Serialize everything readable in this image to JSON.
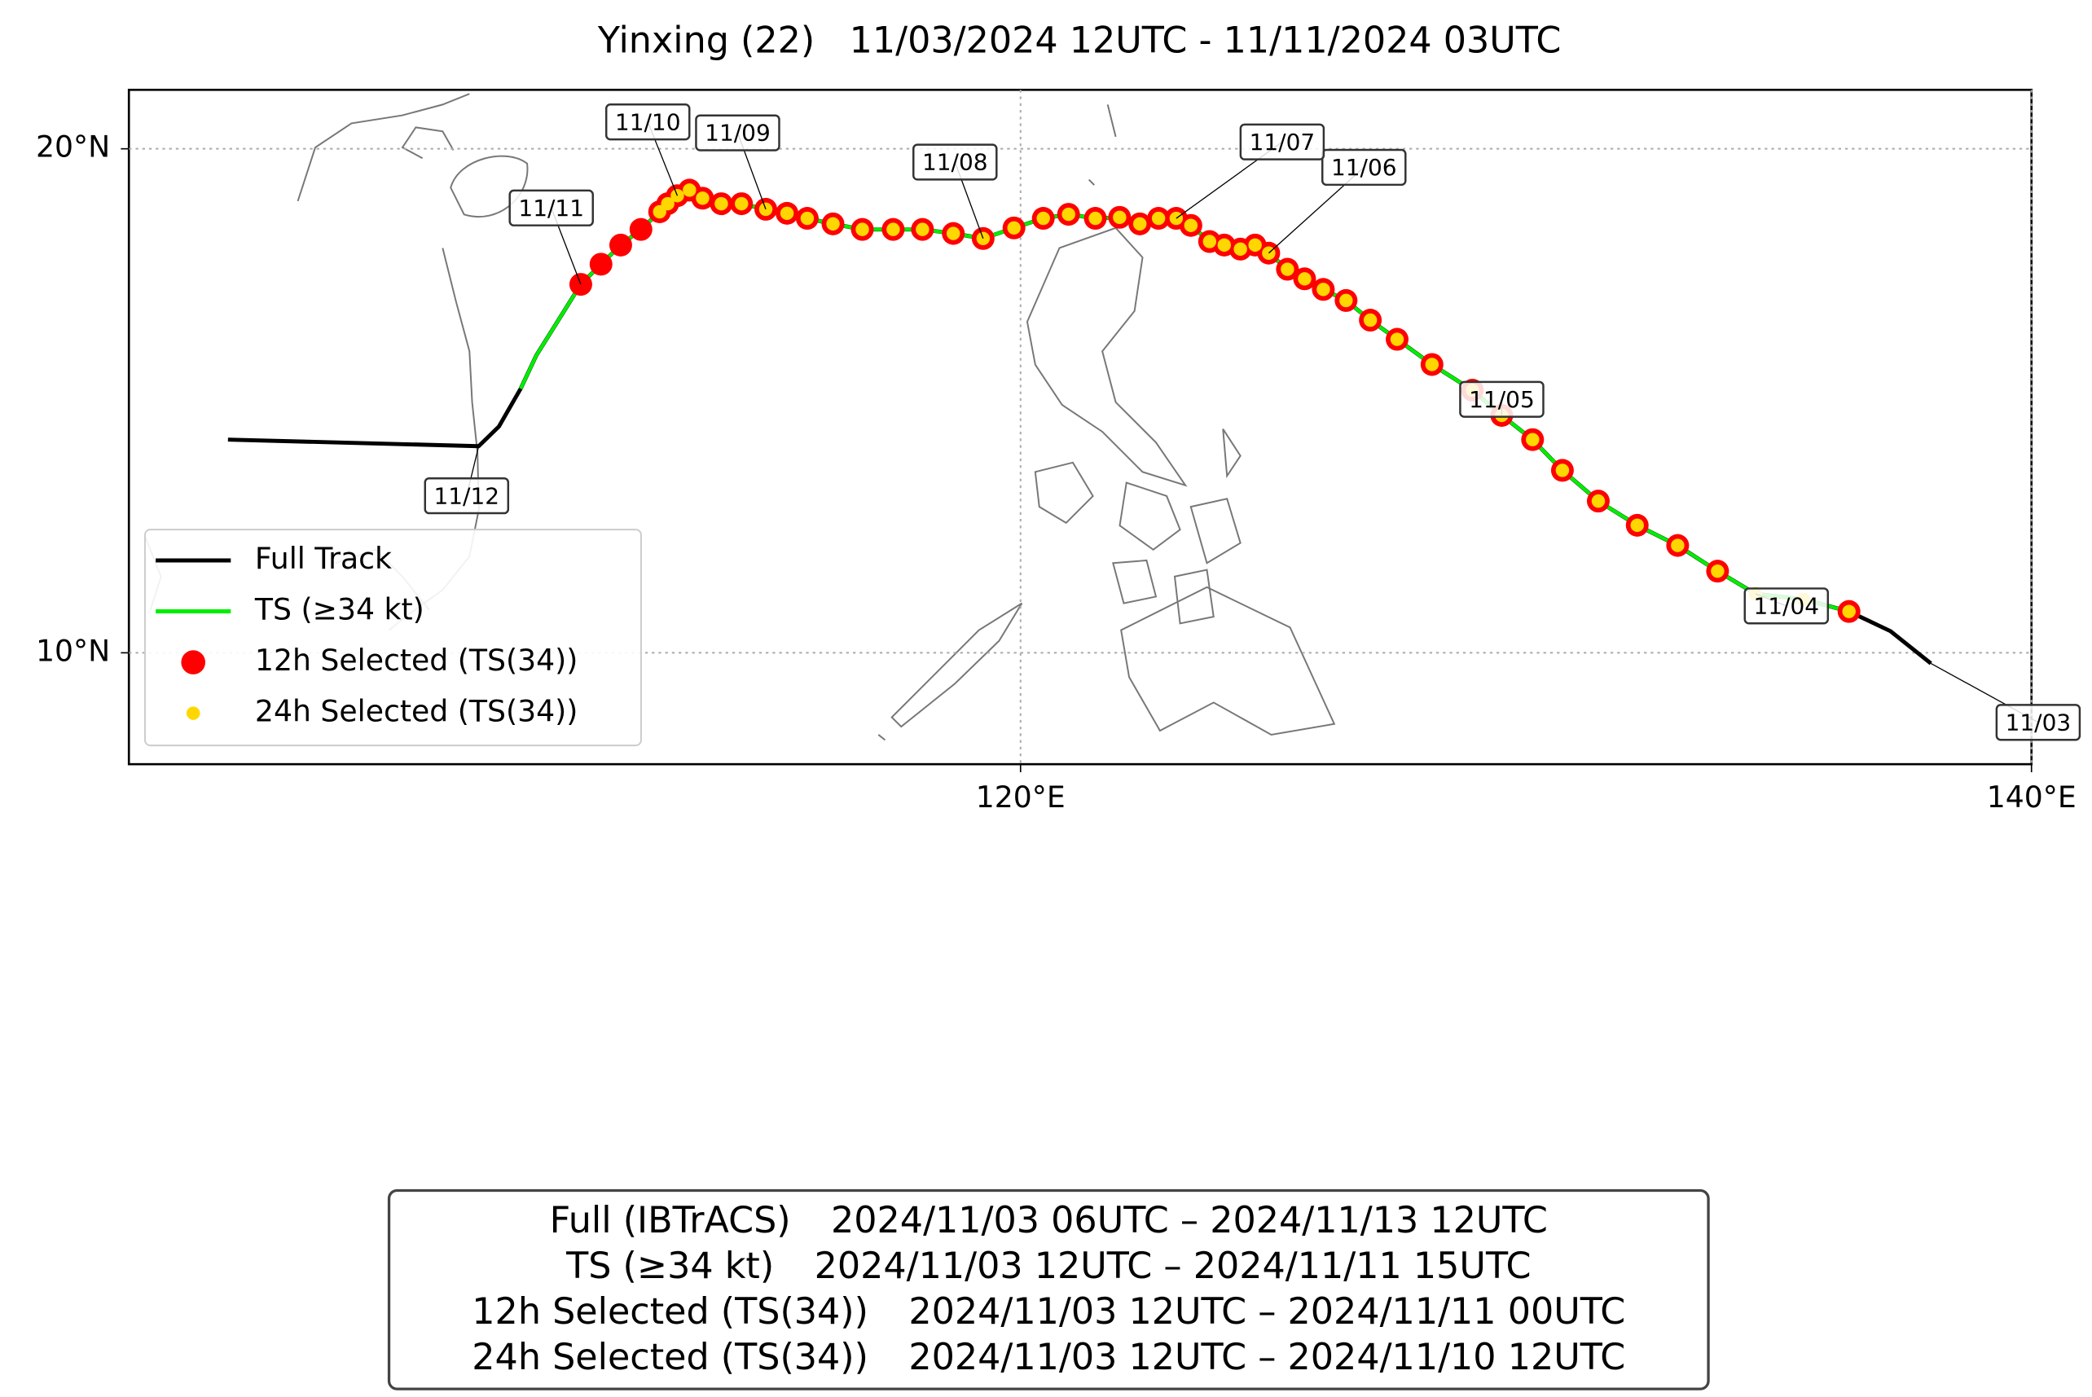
{
  "chart_data": {
    "type": "track",
    "title": "Yinxing (22)   11/03/2024 12UTC - 11/11/2024 03UTC",
    "xlim": [
      102.36,
      140
    ],
    "ylim": [
      7.79,
      21.17
    ],
    "xticks": [
      {
        "value": 120,
        "label": "120°E"
      },
      {
        "value": 140,
        "label": "140°E"
      }
    ],
    "yticks": [
      {
        "value": 10,
        "label": "10°N"
      },
      {
        "value": 20,
        "label": "20°N"
      }
    ],
    "grid": true,
    "legend": "lower left",
    "series": [
      {
        "name": "Full Track",
        "color": "#000000",
        "style": "line",
        "x": [
          138.01,
          137.21,
          136.39,
          135.49,
          134.54,
          133.79,
          133.0,
          132.2,
          131.43,
          130.72,
          130.13,
          129.52,
          128.94,
          128.14,
          127.45,
          126.92,
          126.44,
          125.99,
          125.62,
          125.28,
          124.91,
          124.64,
          124.35,
          124.03,
          123.74,
          123.37,
          123.08,
          122.73,
          122.36,
          121.96,
          121.48,
          120.95,
          120.45,
          119.87,
          119.26,
          118.67,
          118.06,
          117.48,
          116.87,
          116.29,
          115.78,
          115.38,
          114.96,
          114.48,
          114.08,
          113.71,
          113.45,
          113.21,
          113.02,
          112.86,
          112.49,
          112.09,
          111.7,
          111.3,
          110.42,
          110.11,
          109.68,
          109.28,
          104.32
        ],
        "y": [
          9.79,
          10.43,
          10.82,
          11.06,
          11.17,
          11.62,
          12.13,
          12.53,
          13.01,
          13.62,
          14.23,
          14.71,
          15.21,
          15.72,
          16.22,
          16.6,
          16.99,
          17.21,
          17.42,
          17.61,
          17.93,
          18.09,
          18.01,
          18.09,
          18.16,
          18.48,
          18.62,
          18.62,
          18.51,
          18.64,
          18.62,
          18.7,
          18.62,
          18.43,
          18.22,
          18.32,
          18.4,
          18.4,
          18.4,
          18.51,
          18.62,
          18.72,
          18.8,
          18.91,
          18.91,
          19.02,
          19.18,
          19.07,
          18.91,
          18.75,
          18.4,
          18.09,
          17.71,
          17.31,
          15.9,
          15.24,
          14.49,
          14.1,
          14.23
        ]
      },
      {
        "name": "TS (≥34 kt)",
        "color": "#00ee00",
        "style": "line",
        "x": [
          136.39,
          135.49,
          134.54,
          133.79,
          133.0,
          132.2,
          131.43,
          130.72,
          130.13,
          129.52,
          128.94,
          128.14,
          127.45,
          126.92,
          126.44,
          125.99,
          125.62,
          125.28,
          124.91,
          124.64,
          124.35,
          124.03,
          123.74,
          123.37,
          123.08,
          122.73,
          122.36,
          121.96,
          121.48,
          120.95,
          120.45,
          119.87,
          119.26,
          118.67,
          118.06,
          117.48,
          116.87,
          116.29,
          115.78,
          115.38,
          114.96,
          114.48,
          114.08,
          113.71,
          113.45,
          113.21,
          113.02,
          112.86,
          112.49,
          112.09,
          111.7,
          111.3,
          110.42,
          110.11
        ],
        "y": [
          10.82,
          11.06,
          11.17,
          11.62,
          12.13,
          12.53,
          13.01,
          13.62,
          14.23,
          14.71,
          15.21,
          15.72,
          16.22,
          16.6,
          16.99,
          17.21,
          17.42,
          17.61,
          17.93,
          18.09,
          18.01,
          18.09,
          18.16,
          18.48,
          18.62,
          18.62,
          18.51,
          18.64,
          18.62,
          18.7,
          18.62,
          18.43,
          18.22,
          18.32,
          18.4,
          18.4,
          18.4,
          18.51,
          18.62,
          18.72,
          18.8,
          18.91,
          18.91,
          19.02,
          19.18,
          19.07,
          18.91,
          18.75,
          18.4,
          18.09,
          17.71,
          17.31,
          15.9,
          15.24
        ]
      },
      {
        "name": "12h Selected (TS(34))",
        "color": "#ff0000",
        "style": "marker",
        "x": [
          136.39,
          133.79,
          133.0,
          132.2,
          131.43,
          130.72,
          130.13,
          129.52,
          128.94,
          128.14,
          127.45,
          126.92,
          126.44,
          125.99,
          125.62,
          125.28,
          124.91,
          124.64,
          124.35,
          124.03,
          123.74,
          123.37,
          123.08,
          122.73,
          122.36,
          121.96,
          121.48,
          120.95,
          120.45,
          119.87,
          119.26,
          118.67,
          118.06,
          117.48,
          116.87,
          116.29,
          115.78,
          115.38,
          114.96,
          114.48,
          114.08,
          113.71,
          113.45,
          113.21,
          113.02,
          112.86,
          112.49,
          112.09,
          111.7,
          111.3
        ],
        "y": [
          10.82,
          11.62,
          12.13,
          12.53,
          13.01,
          13.62,
          14.23,
          14.71,
          15.21,
          15.72,
          16.22,
          16.6,
          16.99,
          17.21,
          17.42,
          17.61,
          17.93,
          18.09,
          18.01,
          18.09,
          18.16,
          18.48,
          18.62,
          18.62,
          18.51,
          18.64,
          18.62,
          18.7,
          18.62,
          18.43,
          18.22,
          18.32,
          18.4,
          18.4,
          18.4,
          18.51,
          18.62,
          18.72,
          18.8,
          18.91,
          18.91,
          19.02,
          19.18,
          19.07,
          18.91,
          18.75,
          18.4,
          18.09,
          17.71,
          17.31
        ]
      },
      {
        "name": "24h Selected (TS(34))",
        "color": "#ffd700",
        "style": "small-marker",
        "x": [
          136.39,
          135.49,
          134.54,
          133.79,
          133.0,
          132.2,
          131.43,
          130.72,
          130.13,
          129.52,
          128.94,
          128.14,
          127.45,
          126.92,
          126.44,
          125.99,
          125.62,
          125.28,
          124.91,
          124.64,
          124.35,
          124.03,
          123.74,
          123.37,
          123.08,
          122.73,
          122.36,
          121.96,
          121.48,
          120.95,
          120.45,
          119.87,
          119.26,
          118.67,
          118.06,
          117.48,
          116.87,
          116.29,
          115.78,
          115.38,
          114.96,
          114.48,
          114.08,
          113.71,
          113.45,
          113.21,
          113.02,
          112.86
        ],
        "y": [
          10.82,
          11.06,
          11.17,
          11.62,
          12.13,
          12.53,
          13.01,
          13.62,
          14.23,
          14.71,
          15.21,
          15.72,
          16.22,
          16.6,
          16.99,
          17.21,
          17.42,
          17.61,
          17.93,
          18.09,
          18.01,
          18.09,
          18.16,
          18.48,
          18.62,
          18.62,
          18.51,
          18.64,
          18.62,
          18.7,
          18.62,
          18.43,
          18.22,
          18.32,
          18.4,
          18.4,
          18.4,
          18.51,
          18.62,
          18.72,
          18.8,
          18.91,
          18.91,
          19.02,
          19.18,
          19.07,
          18.91,
          18.75
        ]
      }
    ],
    "date_labels": [
      {
        "label": "11/03",
        "lon": 138.01,
        "lat": 9.79
      },
      {
        "label": "11/04",
        "lon": 134.54,
        "lat": 11.17
      },
      {
        "label": "11/05",
        "lon": 129.52,
        "lat": 14.71
      },
      {
        "label": "11/06",
        "lon": 124.91,
        "lat": 17.93
      },
      {
        "label": "11/07",
        "lon": 123.08,
        "lat": 18.62
      },
      {
        "label": "11/08",
        "lon": 119.26,
        "lat": 18.22
      },
      {
        "label": "11/09",
        "lon": 114.96,
        "lat": 18.8
      },
      {
        "label": "11/10",
        "lon": 113.21,
        "lat": 19.07
      },
      {
        "label": "11/11",
        "lon": 111.3,
        "lat": 17.31
      },
      {
        "label": "11/12",
        "lon": 109.28,
        "lat": 14.1
      }
    ],
    "summary": [
      {
        "name": "Full (IBTrACS)",
        "range": "2024/11/03 06UTC – 2024/11/13 12UTC"
      },
      {
        "name": "TS (≥34 kt)",
        "range": "2024/11/03 12UTC – 2024/11/11 15UTC"
      },
      {
        "name": "12h Selected (TS(34))",
        "range": "2024/11/03 12UTC – 2024/11/11 00UTC"
      },
      {
        "name": "24h Selected (TS(34))",
        "range": "2024/11/03 12UTC – 2024/11/10 12UTC"
      }
    ]
  }
}
